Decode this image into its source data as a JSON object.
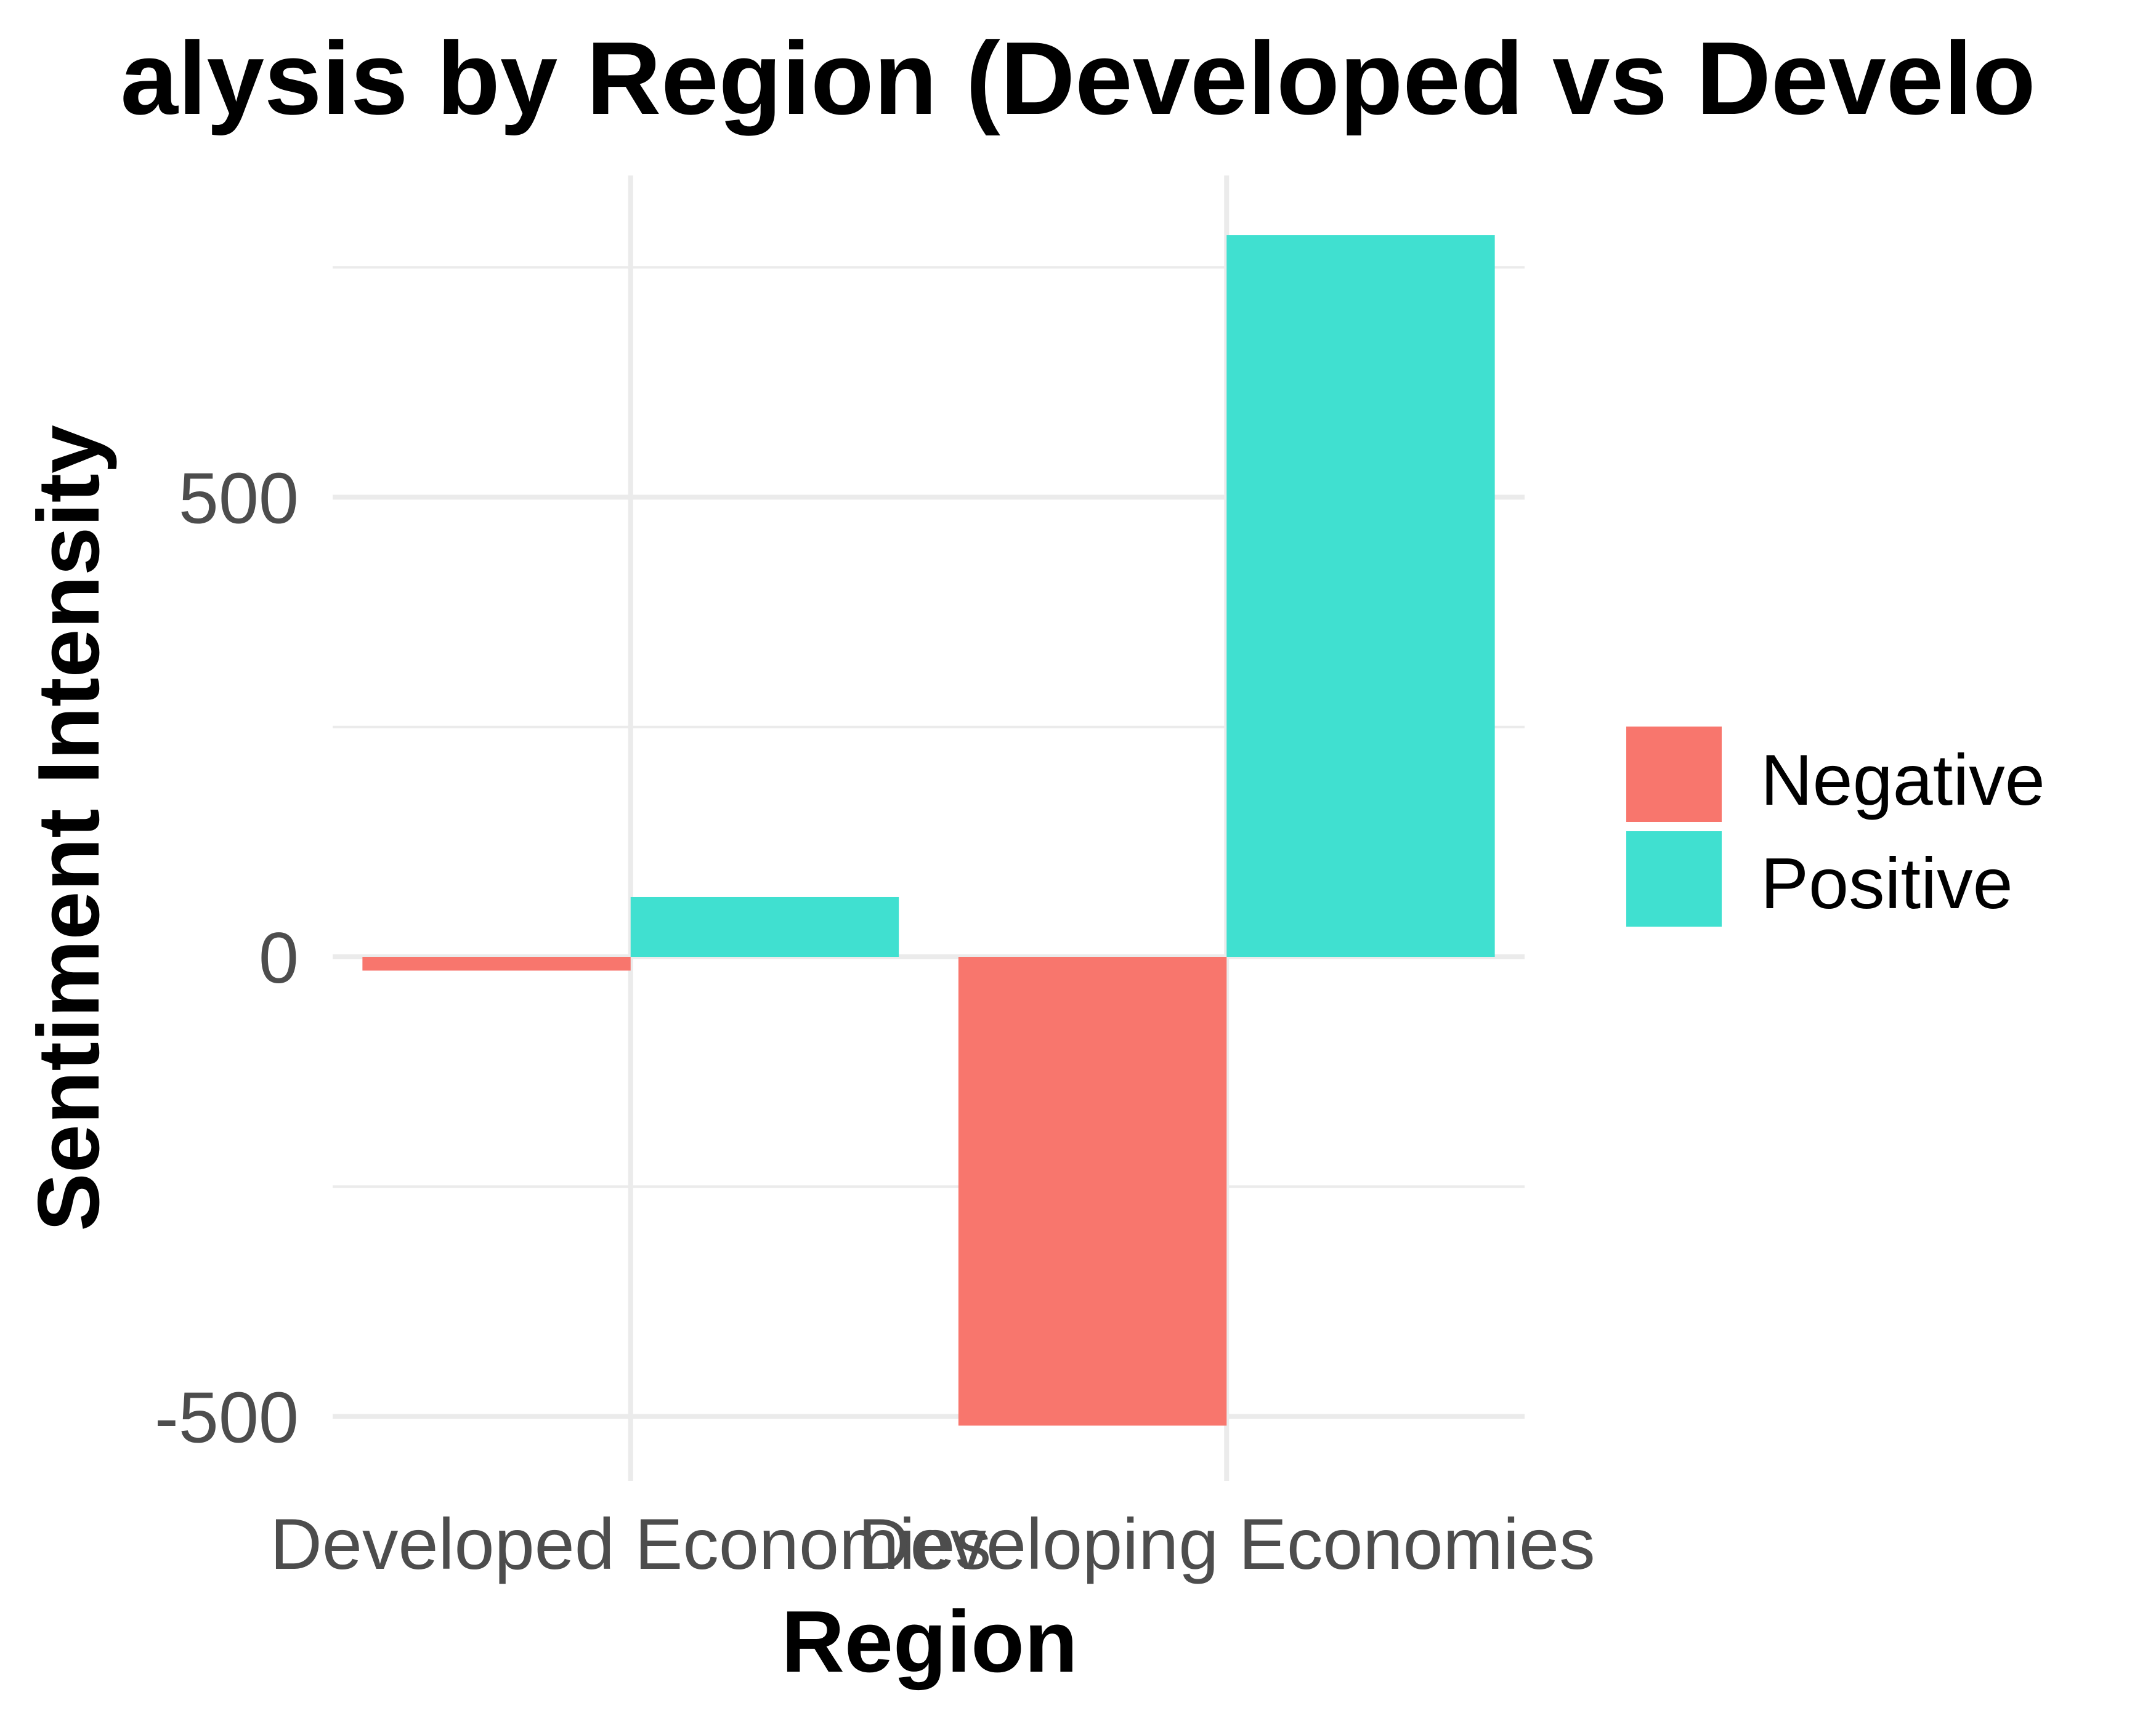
{
  "chart_data": {
    "type": "bar",
    "title": "alysis by Region (Developed vs Develo",
    "xlabel": "Region",
    "ylabel": "Sentiment Intensity",
    "categories": [
      "Developed Economies",
      "Developing Economies"
    ],
    "series": [
      {
        "name": "Negative",
        "color": "#F8766D",
        "values": [
          -15,
          -510
        ]
      },
      {
        "name": "Positive",
        "color": "#40E0D0",
        "values": [
          65,
          785
        ]
      }
    ],
    "ylim": [
      -570,
      850
    ],
    "yticks": [
      -500,
      0,
      500
    ],
    "y_minor_gridlines": [
      -250,
      250,
      750
    ],
    "grid": true,
    "legend_position": "right",
    "colors": {
      "gridline": "#EBEBEB",
      "background": "#FFFFFF",
      "tick_text": "#4D4D4D"
    }
  }
}
